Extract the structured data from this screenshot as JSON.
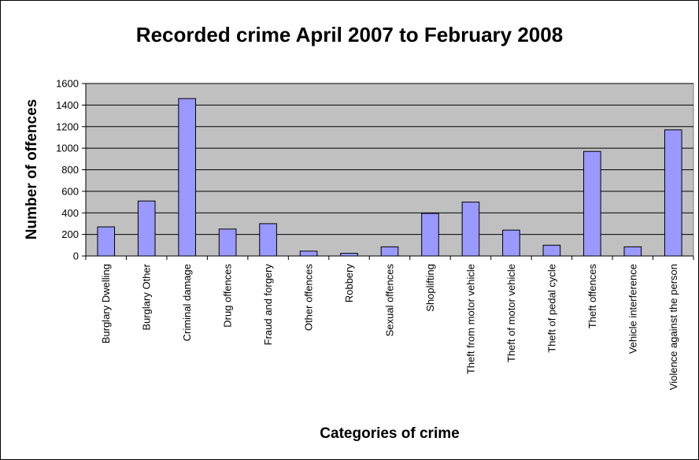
{
  "chart_data": {
    "type": "bar",
    "title": "Recorded crime April 2007 to February 2008",
    "xlabel": "Categories of crime",
    "ylabel": "Number of offences",
    "ylim": [
      0,
      1600
    ],
    "yticks": [
      0,
      200,
      400,
      600,
      800,
      1000,
      1200,
      1400,
      1600
    ],
    "grid": true,
    "legend": "none",
    "categories": [
      "Burglary Dwelling",
      "Burglary Other",
      "Criminal damage",
      "Drug offences",
      "Fraud and forgery",
      "Other offences",
      "Robbery",
      "Sexual offences",
      "Shoplifting",
      "Theft from motor vehicle",
      "Theft of motor vehicle",
      "Theft of pedal cycle",
      "Theft offences",
      "Vehicle interference",
      "Violence against the person"
    ],
    "values": [
      270,
      510,
      1460,
      250,
      300,
      45,
      25,
      85,
      395,
      500,
      240,
      100,
      970,
      85,
      1170
    ],
    "colors": {
      "plot_bg": "#c0c0c0",
      "bar_fill": "#9999ff",
      "bar_stroke": "#000000",
      "grid": "#000000"
    }
  }
}
